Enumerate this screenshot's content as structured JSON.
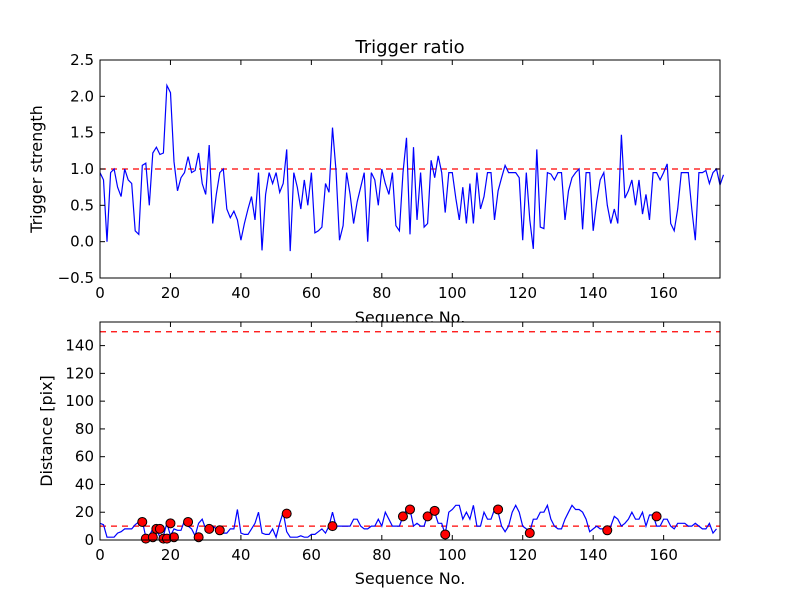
{
  "chart_data": [
    {
      "type": "line",
      "title": "Trigger ratio",
      "xlabel": "Sequence No.",
      "ylabel": "Trigger strength",
      "xlim": [
        0,
        176
      ],
      "ylim": [
        -0.5,
        2.5
      ],
      "xticks": [
        0,
        20,
        40,
        60,
        80,
        100,
        120,
        140,
        160
      ],
      "yticks": [
        -0.5,
        0.0,
        0.5,
        1.0,
        1.5,
        2.0,
        2.5
      ],
      "ytick_labels": [
        "−0.5",
        "0.0",
        "0.5",
        "1.0",
        "1.5",
        "2.0",
        "2.5"
      ],
      "threshold": 1.0,
      "series": [
        {
          "name": "trigger strength",
          "color": "#0000ff",
          "values": [
            0.95,
            0.85,
            0.0,
            0.95,
            1.0,
            0.75,
            0.62,
            1.0,
            0.85,
            0.8,
            0.15,
            0.1,
            1.05,
            1.08,
            0.5,
            1.22,
            1.3,
            1.2,
            1.22,
            2.15,
            2.05,
            1.1,
            0.7,
            0.88,
            0.95,
            1.17,
            0.95,
            0.98,
            1.22,
            0.8,
            0.65,
            1.33,
            0.25,
            0.65,
            0.95,
            1.0,
            0.45,
            0.33,
            0.42,
            0.3,
            0.02,
            0.25,
            0.45,
            0.62,
            0.3,
            0.95,
            -0.12,
            0.65,
            0.95,
            0.8,
            0.95,
            0.68,
            0.8,
            1.27,
            -0.13,
            0.95,
            0.75,
            0.45,
            0.85,
            0.5,
            0.95,
            0.12,
            0.15,
            0.2,
            0.8,
            0.68,
            1.57,
            0.98,
            0.02,
            0.22,
            0.95,
            0.65,
            0.25,
            0.55,
            0.75,
            0.95,
            0.0,
            0.95,
            0.85,
            0.5,
            1.0,
            0.8,
            0.65,
            0.95,
            0.22,
            0.15,
            0.95,
            1.43,
            0.1,
            1.3,
            0.3,
            0.95,
            0.2,
            0.25,
            1.12,
            0.88,
            1.18,
            0.95,
            0.4,
            0.95,
            0.95,
            0.6,
            0.3,
            0.75,
            0.25,
            0.8,
            0.25,
            0.95,
            0.45,
            0.62,
            0.95,
            0.95,
            0.3,
            0.7,
            0.88,
            1.05,
            0.95,
            0.95,
            0.95,
            0.88,
            0.02,
            0.95,
            0.3,
            -0.1,
            1.27,
            0.2,
            0.18,
            0.95,
            0.93,
            0.85,
            0.95,
            0.95,
            0.3,
            0.7,
            0.88,
            0.95,
            1.0,
            0.17,
            0.95,
            0.95,
            0.15,
            0.55,
            0.85,
            0.95,
            0.5,
            0.25,
            0.45,
            0.25,
            1.47,
            0.6,
            0.7,
            0.85,
            0.5,
            0.85,
            0.38,
            0.65,
            0.3,
            0.95,
            0.95,
            0.85,
            0.95,
            1.07,
            0.25,
            0.15,
            0.45,
            0.95,
            0.95,
            0.95,
            0.45,
            0.02,
            0.95,
            0.95,
            0.98,
            0.8,
            0.95,
            1.0,
            0.78,
            0.92
          ]
        }
      ]
    },
    {
      "type": "line",
      "title": "",
      "xlabel": "Sequence No.",
      "ylabel": "Distance [pix]",
      "xlim": [
        0,
        176
      ],
      "ylim": [
        0,
        157
      ],
      "xticks": [
        0,
        20,
        40,
        60,
        80,
        100,
        120,
        140,
        160
      ],
      "yticks": [
        0,
        20,
        40,
        60,
        80,
        100,
        120,
        140
      ],
      "ytick_labels": [
        "0",
        "20",
        "40",
        "60",
        "80",
        "100",
        "120",
        "140"
      ],
      "thresholds": [
        10,
        150
      ],
      "series": [
        {
          "name": "distance",
          "color": "#0000ff",
          "values": [
            12,
            11,
            2,
            2,
            2,
            5,
            6,
            8,
            8,
            8,
            11,
            13,
            14,
            2,
            3,
            8,
            8,
            2,
            3,
            12,
            3,
            8,
            7,
            7,
            14,
            10,
            8,
            3,
            12,
            15,
            8,
            9,
            10,
            8,
            8,
            5,
            5,
            8,
            8,
            22,
            5,
            4,
            4,
            8,
            12,
            20,
            5,
            4,
            4,
            8,
            2,
            12,
            20,
            6,
            2,
            2,
            2,
            3,
            2,
            2,
            4,
            4,
            6,
            8,
            5,
            10,
            20,
            10,
            10,
            10,
            10,
            10,
            15,
            15,
            10,
            8,
            8,
            10,
            10,
            15,
            10,
            20,
            15,
            10,
            10,
            10,
            17,
            22,
            22,
            10,
            12,
            10,
            10,
            18,
            20,
            20,
            12,
            12,
            4,
            20,
            22,
            25,
            25,
            15,
            20,
            15,
            25,
            10,
            10,
            20,
            15,
            15,
            22,
            20,
            10,
            6,
            10,
            20,
            25,
            20,
            10,
            8,
            6,
            15,
            15,
            20,
            20,
            25,
            15,
            10,
            8,
            8,
            15,
            20,
            25,
            22,
            22,
            20,
            15,
            6,
            8,
            10,
            8,
            8,
            6,
            10,
            17,
            15,
            10,
            12,
            15,
            20,
            15,
            15,
            20,
            10,
            18,
            18,
            10,
            10,
            15,
            15,
            10,
            8,
            12,
            12,
            12,
            10,
            10,
            12,
            10,
            8,
            8,
            12,
            5,
            8
          ]
        },
        {
          "name": "detections",
          "type": "scatter",
          "color": "#ff0000",
          "x": [
            12,
            13,
            15,
            16,
            17,
            18,
            19,
            20,
            21,
            25,
            28,
            31,
            34,
            53,
            66,
            86,
            88,
            93,
            95,
            98,
            113,
            122,
            144,
            158
          ],
          "y": [
            13,
            1,
            2,
            8,
            8,
            1,
            1,
            12,
            2,
            13,
            2,
            8,
            7,
            19,
            10,
            17,
            22,
            17,
            21,
            4,
            22,
            5,
            7,
            17
          ]
        }
      ]
    }
  ]
}
